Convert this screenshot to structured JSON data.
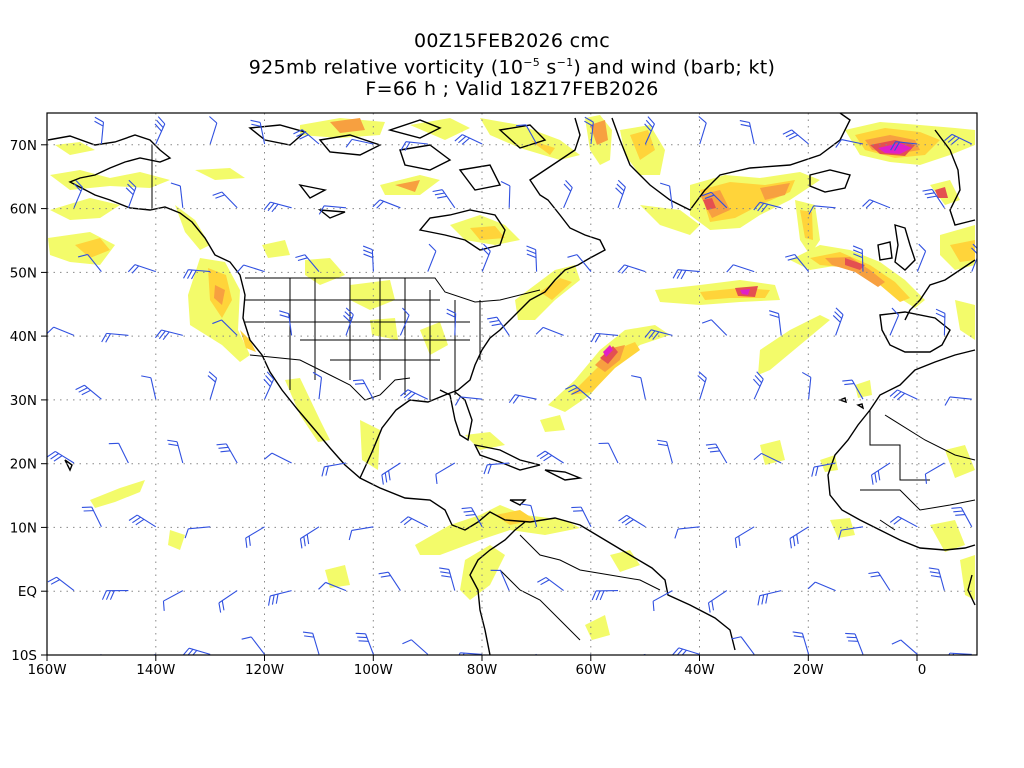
{
  "title": {
    "line1": "00Z15FEB2026 cmc",
    "line2_prefix": "925mb relative vorticity (10",
    "line2_exp1": "−5",
    "line2_mid": " s",
    "line2_exp2": "−1",
    "line2_suffix": ") and wind (barb; kt)",
    "line3": "F=66 h ; Valid 18Z17FEB2026"
  },
  "axes": {
    "lon_labels": [
      "160W",
      "140W",
      "120W",
      "100W",
      "80W",
      "60W",
      "40W",
      "20W",
      "0"
    ],
    "lat_labels": [
      "70N",
      "60N",
      "50N",
      "40N",
      "30N",
      "20N",
      "10N",
      "EQ",
      "10S"
    ]
  },
  "colors": {
    "shade_light": "#f3fb6a",
    "shade_mid": "#ffd43a",
    "shade_orange": "#f7a040",
    "shade_red": "#e45050",
    "shade_core": "#e020c8",
    "barb": "#3050e0",
    "coast": "#000000",
    "grid": "#888888"
  }
}
